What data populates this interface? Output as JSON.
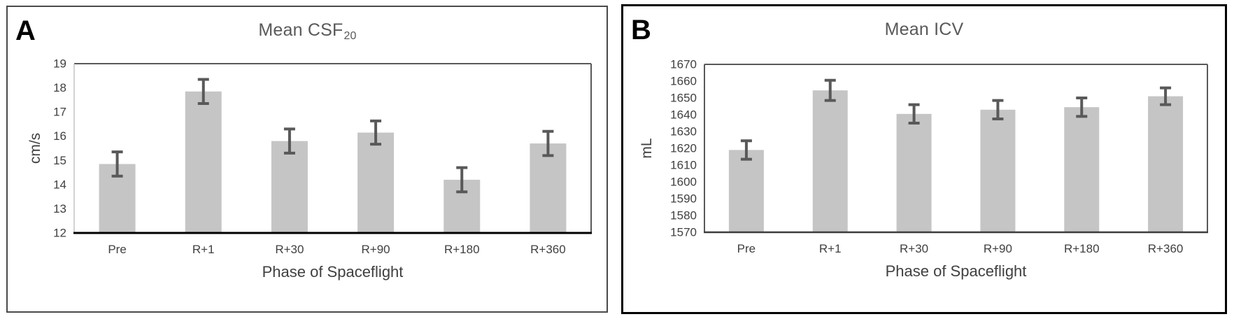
{
  "figure": {
    "panel_count": 2,
    "background": "#ffffff"
  },
  "chart_data": [
    {
      "type": "bar",
      "panel_label": "A",
      "title": "Mean CSF20",
      "title_main": "Mean CSF",
      "title_sub": "20",
      "categories": [
        "Pre",
        "R+1",
        "R+30",
        "R+90",
        "R+180",
        "R+360"
      ],
      "values": [
        14.85,
        17.85,
        15.8,
        16.15,
        14.2,
        15.7
      ],
      "errors": [
        0.5,
        0.5,
        0.5,
        0.48,
        0.5,
        0.5
      ],
      "xlabel": "Phase of Spaceflight",
      "ylabel": "cm/s",
      "ylim": [
        12,
        19
      ],
      "ytick_step": 1,
      "yticks": [
        12,
        13,
        14,
        15,
        16,
        17,
        18,
        19
      ],
      "grid": false,
      "legend": "none",
      "bar_color": "#c5c5c5",
      "error_color": "#595959",
      "text_color": "#404040",
      "title_color": "#595959"
    },
    {
      "type": "bar",
      "panel_label": "B",
      "title": "Mean ICV",
      "title_main": "Mean ICV",
      "title_sub": "",
      "categories": [
        "Pre",
        "R+1",
        "R+30",
        "R+90",
        "R+180",
        "R+360"
      ],
      "values": [
        1619,
        1654.5,
        1640.5,
        1643,
        1644.5,
        1651
      ],
      "errors": [
        5.5,
        6,
        5.5,
        5.5,
        5.5,
        5
      ],
      "xlabel": "Phase of Spaceflight",
      "ylabel": "mL",
      "ylim": [
        1570,
        1670
      ],
      "ytick_step": 10,
      "yticks": [
        1570,
        1580,
        1590,
        1600,
        1610,
        1620,
        1630,
        1640,
        1650,
        1660,
        1670
      ],
      "grid": false,
      "legend": "none",
      "bar_color": "#c5c5c5",
      "error_color": "#595959",
      "text_color": "#404040",
      "title_color": "#595959"
    }
  ]
}
